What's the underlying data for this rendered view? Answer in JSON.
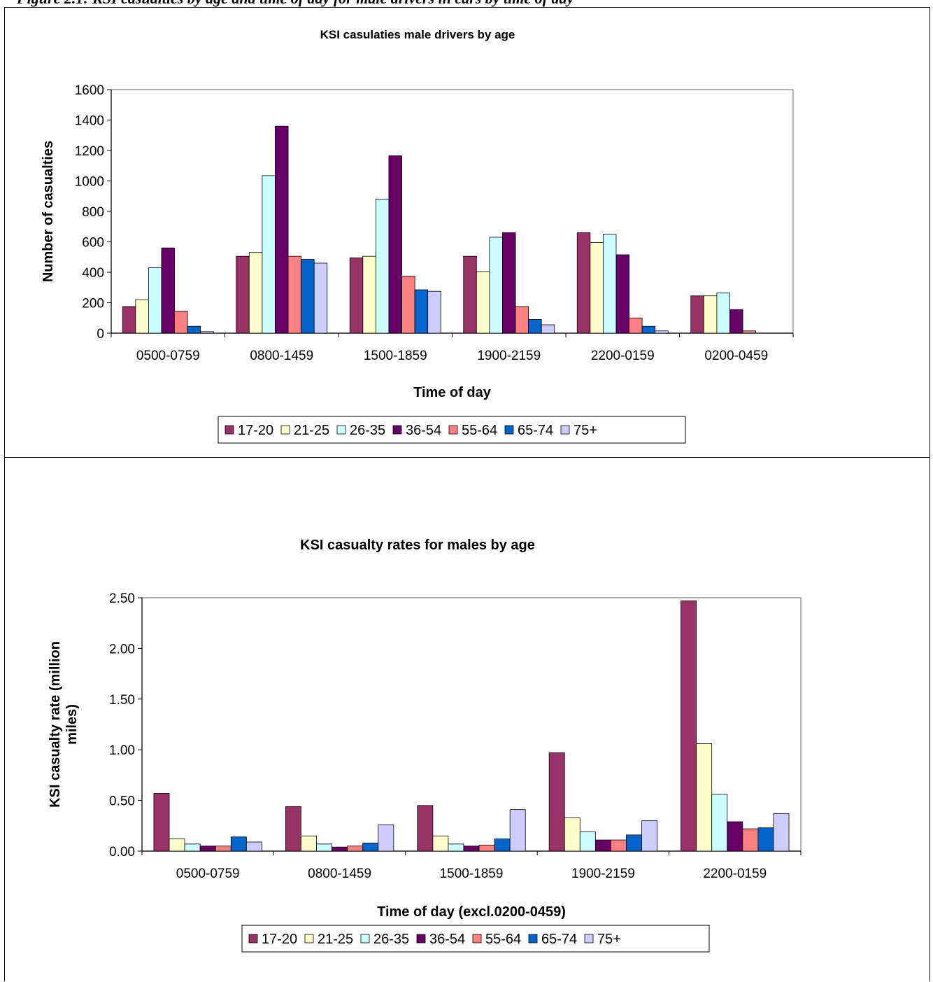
{
  "page_header": "Figure 2.1: KSI casualties by age and time of day for male drivers in cars by time of day",
  "colors": {
    "17-20": "#993366",
    "21-25": "#ffffcc",
    "26-35": "#ccffff",
    "36-54": "#660066",
    "55-64": "#ff8080",
    "65-74": "#0066cc",
    "75+": "#ccccff"
  },
  "chart_data": [
    {
      "type": "bar",
      "title": "KSI casulaties male drivers by age",
      "xlabel": "Time of day",
      "ylabel": "Number of casualties",
      "ylim": [
        0,
        1600
      ],
      "yticks": [
        "0",
        "200",
        "400",
        "600",
        "800",
        "1000",
        "1200",
        "1400",
        "1600"
      ],
      "grid": false,
      "legend": "bottom",
      "categories": [
        "0500-0759",
        "0800-1459",
        "1500-1859",
        "1900-2159",
        "2200-0159",
        "0200-0459"
      ],
      "series": [
        {
          "name": "17-20",
          "values": [
            175,
            505,
            495,
            505,
            660,
            245
          ]
        },
        {
          "name": "21-25",
          "values": [
            220,
            530,
            505,
            405,
            595,
            245
          ]
        },
        {
          "name": "26-35",
          "values": [
            430,
            1035,
            880,
            630,
            650,
            265
          ]
        },
        {
          "name": "36-54",
          "values": [
            560,
            1360,
            1165,
            660,
            515,
            155
          ]
        },
        {
          "name": "55-64",
          "values": [
            145,
            505,
            375,
            175,
            100,
            15
          ]
        },
        {
          "name": "65-74",
          "values": [
            45,
            485,
            285,
            90,
            45,
            0
          ]
        },
        {
          "name": "75+",
          "values": [
            10,
            460,
            275,
            55,
            15,
            0
          ]
        }
      ]
    },
    {
      "type": "bar",
      "title": "KSI casualty rates for males by age",
      "xlabel": "Time of day (excl.0200-0459)",
      "ylabel": "KSI casualty rate (million miles)",
      "ylim": [
        0,
        2.5
      ],
      "yticks": [
        "0.00",
        "0.50",
        "1.00",
        "1.50",
        "2.00",
        "2.50"
      ],
      "grid": false,
      "legend": "bottom",
      "categories": [
        "0500-0759",
        "0800-1459",
        "1500-1859",
        "1900-2159",
        "2200-0159"
      ],
      "series": [
        {
          "name": "17-20",
          "values": [
            0.57,
            0.44,
            0.45,
            0.97,
            2.47
          ]
        },
        {
          "name": "21-25",
          "values": [
            0.12,
            0.15,
            0.15,
            0.33,
            1.06
          ]
        },
        {
          "name": "26-35",
          "values": [
            0.07,
            0.07,
            0.07,
            0.19,
            0.56
          ]
        },
        {
          "name": "36-54",
          "values": [
            0.05,
            0.04,
            0.05,
            0.11,
            0.29
          ]
        },
        {
          "name": "55-64",
          "values": [
            0.05,
            0.05,
            0.06,
            0.11,
            0.22
          ]
        },
        {
          "name": "65-74",
          "values": [
            0.14,
            0.08,
            0.12,
            0.16,
            0.23
          ]
        },
        {
          "name": "75+",
          "values": [
            0.09,
            0.26,
            0.41,
            0.3,
            0.37
          ]
        }
      ]
    }
  ]
}
